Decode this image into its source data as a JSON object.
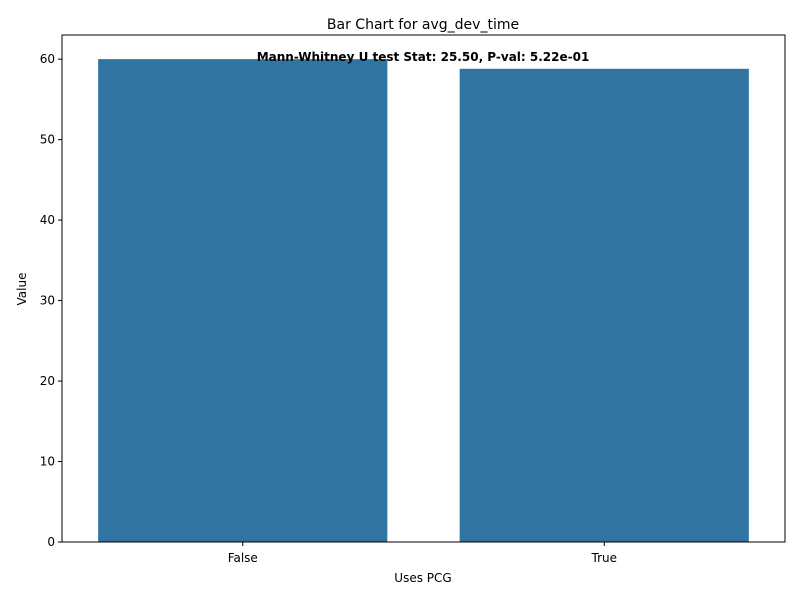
{
  "chart_data": {
    "type": "bar",
    "title": "Bar Chart for avg_dev_time",
    "xlabel": "Uses PCG",
    "ylabel": "Value",
    "categories": [
      "False",
      "True"
    ],
    "values": [
      60.0,
      58.8
    ],
    "ylim": [
      0,
      63
    ],
    "yticks": [
      0,
      10,
      20,
      30,
      40,
      50,
      60
    ],
    "annotation": "Mann-Whitney U test Stat: 25.50, P-val: 5.22e-01",
    "bar_color": "#3274a1",
    "grid": false
  }
}
